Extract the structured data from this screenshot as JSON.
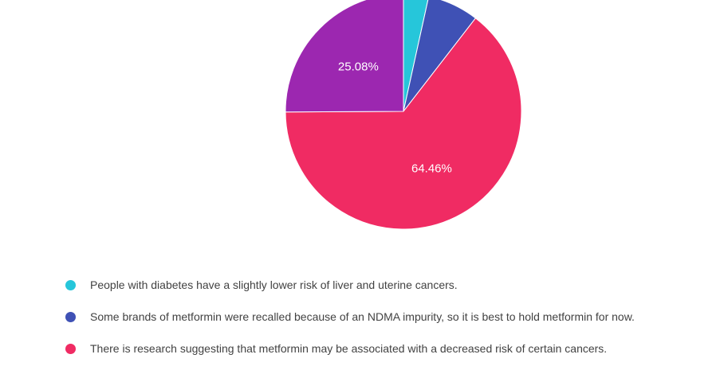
{
  "chart_data": {
    "type": "pie",
    "slices": [
      {
        "label": "People with diabetes have a slightly lower risk of liver and uterine cancers.",
        "value": 3.44,
        "value_label": "",
        "color": "#26C6DA"
      },
      {
        "label": "Some brands of metformin were recalled because of an NDMA impurity, so it is best to hold metformin for now.",
        "value": 7.02,
        "value_label": "",
        "color": "#3F51B5"
      },
      {
        "label": "There is research suggesting that metformin may be associated with a decreased risk of certain cancers.",
        "value": 64.46,
        "value_label": "64.46%",
        "color": "#F02B63"
      },
      {
        "label": "",
        "value": 25.08,
        "value_label": "25.08%",
        "color": "#9C27B0"
      }
    ],
    "legend_position": "bottom"
  }
}
